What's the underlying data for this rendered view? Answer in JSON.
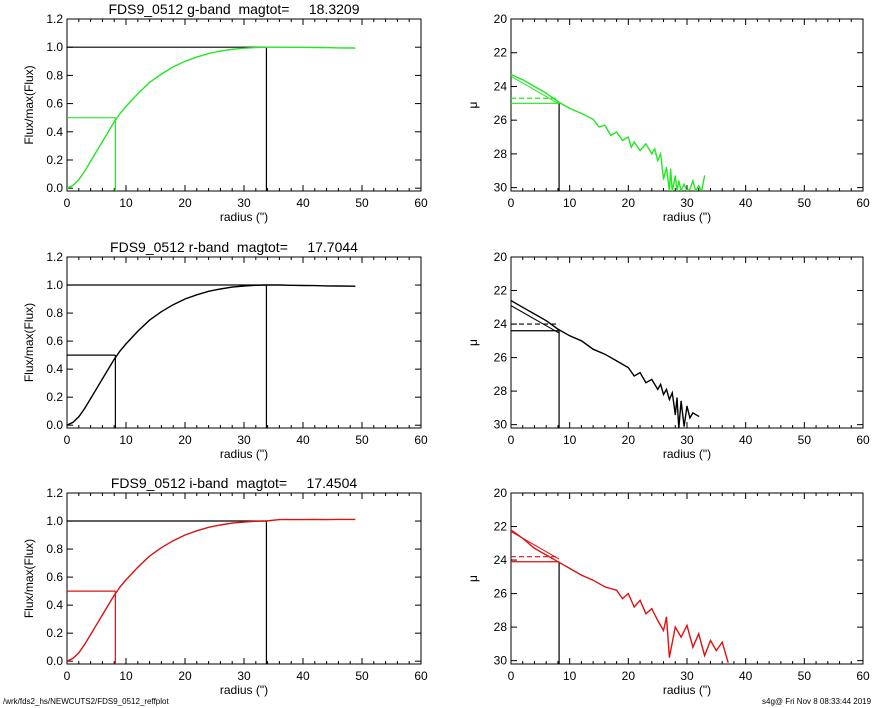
{
  "footer": {
    "path": "/wrk/fds2_hs/NEWCUTS2/FDS9_0512_reffplot",
    "stamp": "s4g@  Fri Nov  8 08:33:44 2019"
  },
  "colors": {
    "g": "#22e622",
    "r": "#000000",
    "i": "#e01010",
    "guide": "#000000"
  },
  "chart_data": [
    {
      "id": "g-growth",
      "type": "line",
      "title": "FDS9_0512 g-band  magtot=     18.3209",
      "xlabel": "radius (\")",
      "ylabel": "Flux/max(Flux)",
      "xlim": [
        0,
        60
      ],
      "ylim": [
        -0.02,
        1.2
      ],
      "xticks": [
        "0",
        "10",
        "20",
        "30",
        "40",
        "50",
        "60"
      ],
      "yticks": [
        "0.0",
        "0.2",
        "0.4",
        "0.6",
        "0.8",
        "1.0",
        "1.2"
      ],
      "band": "g",
      "r_half": 8.2,
      "r_max": 33.8,
      "x": [
        0,
        1,
        2,
        3,
        4,
        5,
        6,
        7,
        8,
        9,
        10,
        12,
        14,
        16,
        18,
        20,
        22,
        24,
        26,
        28,
        30,
        32,
        33.8,
        36,
        38,
        40,
        42,
        44,
        46,
        48.8
      ],
      "y": [
        0,
        0.02,
        0.06,
        0.12,
        0.19,
        0.26,
        0.33,
        0.4,
        0.47,
        0.53,
        0.58,
        0.67,
        0.75,
        0.81,
        0.86,
        0.9,
        0.93,
        0.955,
        0.972,
        0.985,
        0.993,
        0.998,
        1.0,
        1.0,
        0.999,
        0.999,
        0.998,
        0.997,
        0.995,
        0.994
      ]
    },
    {
      "id": "g-profile",
      "type": "line",
      "title": "",
      "xlabel": "radius (\")",
      "ylabel": "μ",
      "xlim": [
        0,
        60
      ],
      "ylim": [
        30.2,
        20
      ],
      "reversed_y": true,
      "xticks": [
        "0",
        "10",
        "20",
        "30",
        "40",
        "50",
        "60"
      ],
      "yticks": [
        "20",
        "22",
        "24",
        "26",
        "28",
        "30"
      ],
      "band": "g",
      "r_half": 8.2,
      "mu_half": 25.0,
      "mu_mean": 24.7,
      "fit": [
        23.4,
        0.1
      ],
      "x": [
        0,
        2,
        4,
        6,
        8,
        10,
        12,
        14,
        15,
        16,
        17,
        18,
        19,
        20,
        20.5,
        21,
        22,
        23,
        24,
        24.5,
        25,
        25.5,
        26,
        26.5,
        27,
        27.2,
        27.5,
        28,
        28.3,
        28.6,
        29,
        29.5,
        30,
        30.5,
        31,
        31.5,
        32,
        32.5,
        33
      ],
      "y": [
        23.3,
        23.6,
        24.0,
        24.4,
        24.9,
        25.3,
        25.6,
        25.95,
        26.4,
        26.3,
        26.9,
        26.7,
        27.2,
        27.0,
        27.6,
        27.3,
        27.8,
        27.4,
        28.0,
        27.7,
        28.4,
        28.0,
        29.5,
        28.8,
        30.2,
        28.9,
        30.2,
        29.3,
        30.2,
        29.6,
        30.2,
        29.8,
        30.2,
        30.1,
        29.6,
        30.2,
        29.9,
        30.2,
        29.3
      ]
    },
    {
      "id": "r-growth",
      "type": "line",
      "title": "FDS9_0512 r-band  magtot=     17.7044",
      "xlabel": "radius (\")",
      "ylabel": "Flux/max(Flux)",
      "xlim": [
        0,
        60
      ],
      "ylim": [
        -0.02,
        1.2
      ],
      "xticks": [
        "0",
        "10",
        "20",
        "30",
        "40",
        "50",
        "60"
      ],
      "yticks": [
        "0.0",
        "0.2",
        "0.4",
        "0.6",
        "0.8",
        "1.0",
        "1.2"
      ],
      "band": "r",
      "r_half": 8.2,
      "r_max": 33.8,
      "x": [
        0,
        1,
        2,
        3,
        4,
        5,
        6,
        7,
        8,
        9,
        10,
        12,
        14,
        16,
        18,
        20,
        22,
        24,
        26,
        28,
        30,
        32,
        33.8,
        36,
        38,
        40,
        42,
        44,
        46,
        48.8
      ],
      "y": [
        0,
        0.02,
        0.06,
        0.12,
        0.19,
        0.26,
        0.33,
        0.4,
        0.47,
        0.53,
        0.58,
        0.67,
        0.75,
        0.81,
        0.86,
        0.9,
        0.93,
        0.955,
        0.972,
        0.985,
        0.993,
        0.998,
        1.0,
        1.0,
        0.998,
        0.997,
        0.996,
        0.994,
        0.993,
        0.992
      ]
    },
    {
      "id": "r-profile",
      "type": "line",
      "title": "",
      "xlabel": "radius (\")",
      "ylabel": "μ",
      "xlim": [
        0,
        60
      ],
      "ylim": [
        30.2,
        20
      ],
      "reversed_y": true,
      "xticks": [
        "0",
        "10",
        "20",
        "30",
        "40",
        "50",
        "60"
      ],
      "yticks": [
        "20",
        "22",
        "24",
        "26",
        "28",
        "30"
      ],
      "band": "r",
      "r_half": 8.2,
      "mu_half": 24.4,
      "mu_mean": 24.0,
      "fit": [
        22.9,
        0.1
      ],
      "x": [
        0,
        2,
        4,
        6,
        8,
        10,
        12,
        14,
        16,
        18,
        20,
        21,
        22,
        23,
        24,
        25,
        25.5,
        26,
        26.5,
        27,
        27.5,
        28,
        28.3,
        28.6,
        29,
        29.5,
        30,
        30.5,
        31,
        32
      ],
      "y": [
        22.6,
        23.0,
        23.4,
        23.8,
        24.3,
        24.7,
        25.0,
        25.5,
        25.8,
        26.2,
        26.6,
        27.1,
        26.9,
        27.5,
        27.3,
        27.9,
        27.6,
        28.2,
        27.9,
        28.5,
        28.1,
        29.4,
        28.4,
        30.2,
        28.6,
        30.1,
        28.9,
        29.6,
        29.3,
        29.5
      ]
    },
    {
      "id": "i-growth",
      "type": "line",
      "title": "FDS9_0512 i-band  magtot=     17.4504",
      "xlabel": "radius (\")",
      "ylabel": "Flux/max(Flux)",
      "xlim": [
        0,
        60
      ],
      "ylim": [
        -0.02,
        1.2
      ],
      "xticks": [
        "0",
        "10",
        "20",
        "30",
        "40",
        "50",
        "60"
      ],
      "yticks": [
        "0.0",
        "0.2",
        "0.4",
        "0.6",
        "0.8",
        "1.0",
        "1.2"
      ],
      "band": "i",
      "r_half": 8.2,
      "r_max": 33.8,
      "x": [
        0,
        1,
        2,
        3,
        4,
        5,
        6,
        7,
        8,
        9,
        10,
        12,
        14,
        16,
        18,
        20,
        22,
        24,
        26,
        28,
        30,
        32,
        33.8,
        36,
        38,
        40,
        42,
        44,
        46,
        48.8
      ],
      "y": [
        0,
        0.02,
        0.06,
        0.12,
        0.19,
        0.26,
        0.33,
        0.4,
        0.47,
        0.53,
        0.58,
        0.67,
        0.75,
        0.81,
        0.86,
        0.9,
        0.93,
        0.955,
        0.972,
        0.985,
        0.993,
        0.998,
        1.0,
        1.01,
        1.01,
        1.01,
        1.012,
        1.01,
        1.012,
        1.012
      ]
    },
    {
      "id": "i-profile",
      "type": "line",
      "title": "",
      "xlabel": "radius (\")",
      "ylabel": "μ",
      "xlim": [
        0,
        60
      ],
      "ylim": [
        30.2,
        20
      ],
      "reversed_y": true,
      "xticks": [
        "0",
        "10",
        "20",
        "30",
        "40",
        "50",
        "60"
      ],
      "yticks": [
        "20",
        "22",
        "24",
        "26",
        "28",
        "30"
      ],
      "band": "i",
      "r_half": 8.2,
      "mu_half": 24.1,
      "mu_mean": 23.8,
      "fit": [
        22.3,
        0.1
      ],
      "x": [
        0,
        2,
        4,
        6,
        8,
        10,
        12,
        14,
        16,
        18,
        19,
        20,
        21,
        22,
        23,
        24,
        25,
        26,
        26.5,
        27,
        28,
        29,
        30,
        31,
        32,
        33,
        34,
        35,
        36,
        37
      ],
      "y": [
        22.2,
        22.7,
        23.3,
        23.7,
        24.1,
        24.5,
        24.9,
        25.2,
        25.6,
        25.8,
        26.3,
        26.0,
        26.8,
        26.4,
        27.2,
        26.9,
        27.6,
        28.2,
        27.4,
        29.8,
        28.0,
        28.6,
        27.9,
        29.2,
        28.4,
        29.7,
        28.8,
        29.4,
        28.9,
        30.1
      ]
    }
  ]
}
